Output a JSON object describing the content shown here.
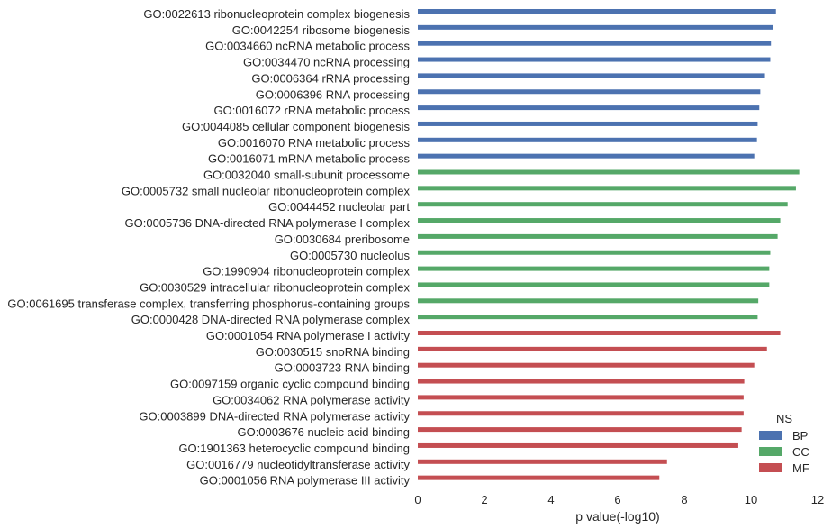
{
  "chart_data": {
    "type": "bar",
    "orientation": "horizontal",
    "xlabel": "p value(-log10)",
    "xlim": [
      0,
      12
    ],
    "xticks": [
      "0",
      "2",
      "4",
      "6",
      "8",
      "10",
      "12"
    ],
    "grid": false,
    "legend": {
      "title": "NS",
      "placement": "lower-right",
      "entries": [
        {
          "name": "BP",
          "color": "#4c72b0"
        },
        {
          "name": "CC",
          "color": "#55a868"
        },
        {
          "name": "MF",
          "color": "#c44e52"
        }
      ]
    },
    "categories": [
      "GO:0022613 ribonucleoprotein complex biogenesis",
      "GO:0042254 ribosome biogenesis",
      "GO:0034660 ncRNA metabolic process",
      "GO:0034470 ncRNA processing",
      "GO:0006364 rRNA processing",
      "GO:0006396 RNA processing",
      "GO:0016072 rRNA metabolic process",
      "GO:0044085 cellular component biogenesis",
      "GO:0016070 RNA metabolic process",
      "GO:0016071 mRNA metabolic process",
      "GO:0032040 small-subunit processome",
      "GO:0005732 small nucleolar ribonucleoprotein complex",
      "GO:0044452 nucleolar part",
      "GO:0005736 DNA-directed RNA polymerase I complex",
      "GO:0030684 preribosome",
      "GO:0005730 nucleolus",
      "GO:1990904 ribonucleoprotein complex",
      "GO:0030529 intracellular ribonucleoprotein complex",
      "GO:0061695 transferase complex, transferring phosphorus-containing groups",
      "GO:0000428 DNA-directed RNA polymerase complex",
      "GO:0001054 RNA polymerase I activity",
      "GO:0030515 snoRNA binding",
      "GO:0003723 RNA binding",
      "GO:0097159 organic cyclic compound binding",
      "GO:0034062 RNA polymerase activity",
      "GO:0003899 DNA-directed RNA polymerase activity",
      "GO:0003676 nucleic acid binding",
      "GO:1901363 heterocyclic compound binding",
      "GO:0016779 nucleotidyltransferase activity",
      "GO:0001056 RNA polymerase III activity"
    ],
    "ns": [
      "BP",
      "BP",
      "BP",
      "BP",
      "BP",
      "BP",
      "BP",
      "BP",
      "BP",
      "BP",
      "CC",
      "CC",
      "CC",
      "CC",
      "CC",
      "CC",
      "CC",
      "CC",
      "CC",
      "CC",
      "MF",
      "MF",
      "MF",
      "MF",
      "MF",
      "MF",
      "MF",
      "MF",
      "MF",
      "MF"
    ],
    "values": [
      10.75,
      10.65,
      10.6,
      10.58,
      10.42,
      10.28,
      10.25,
      10.2,
      10.18,
      10.1,
      11.45,
      11.35,
      11.1,
      10.88,
      10.8,
      10.58,
      10.55,
      10.55,
      10.22,
      10.2,
      10.88,
      10.48,
      10.1,
      9.8,
      9.78,
      9.78,
      9.72,
      9.62,
      7.48,
      7.25
    ]
  }
}
